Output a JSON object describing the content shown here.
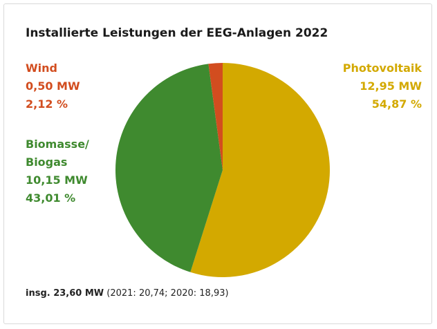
{
  "chart_data": {
    "type": "pie",
    "title": "Installierte Leistungen der EEG-Anlagen 2022",
    "categories": [
      "Photovoltaik",
      "Biomasse/\nBiogas",
      "Wind"
    ],
    "values": [
      54.87,
      43.01,
      2.12
    ],
    "value_labels": [
      "54,87 %",
      "43,01 %",
      "2,12 %"
    ],
    "mw_values": [
      12.95,
      10.15,
      0.5
    ],
    "mw_labels": [
      "12,95 MW",
      "10,15 MW",
      "0,50 MW"
    ],
    "colors": [
      "#d3a900",
      "#3f8a2f",
      "#d24d1f"
    ],
    "footnote": {
      "total": "insg. 23,60 MW",
      "history": "(2021: 20,74; 2020: 18,93)"
    }
  }
}
